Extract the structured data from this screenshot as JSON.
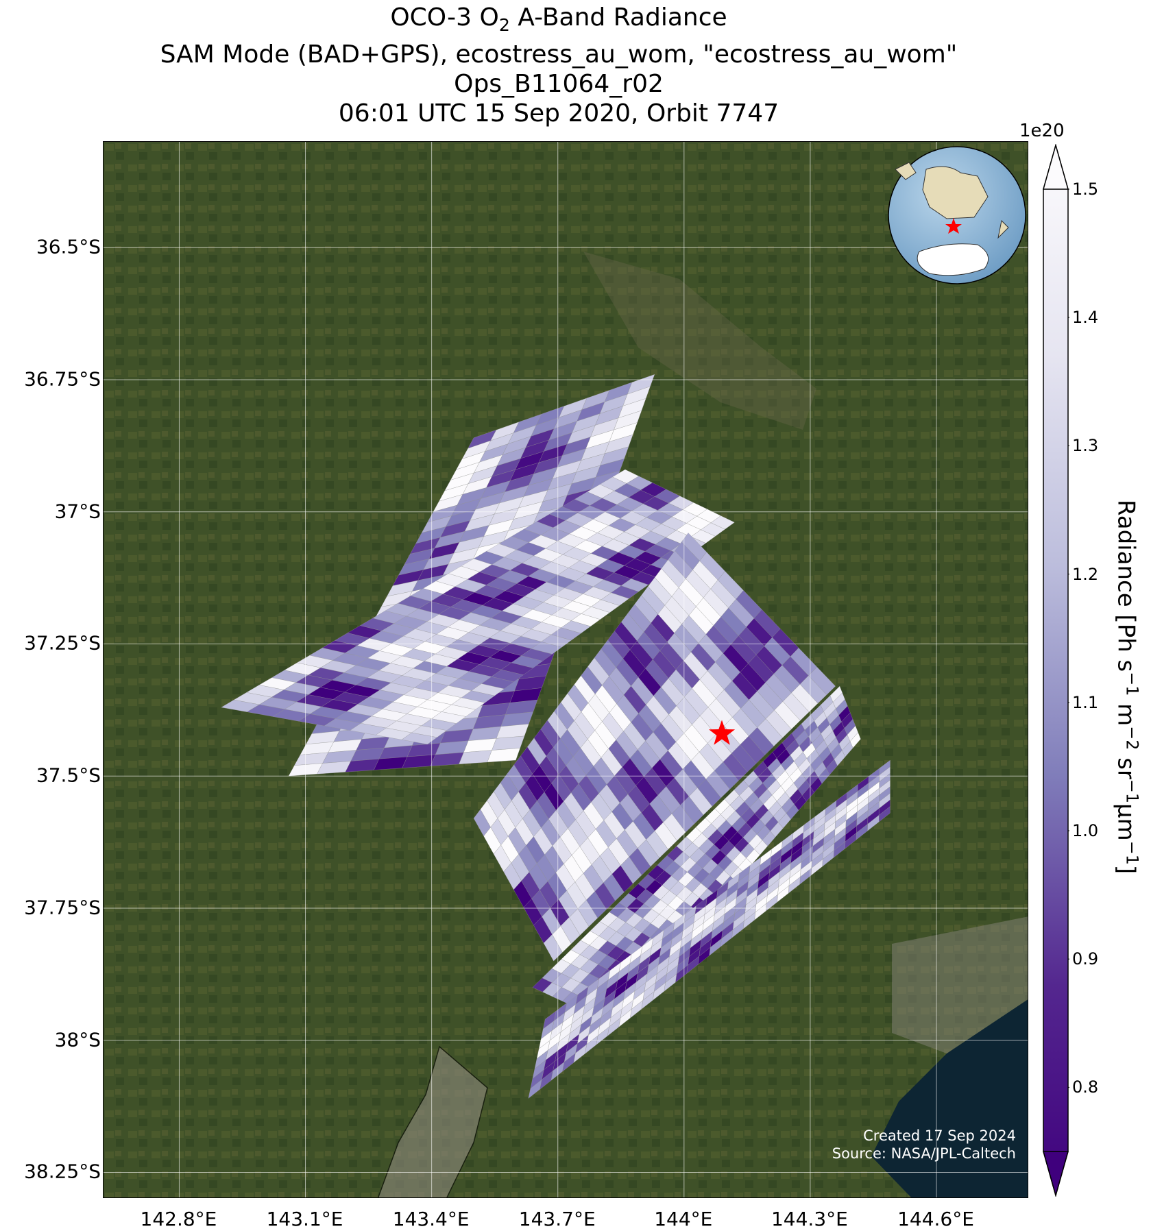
{
  "title": {
    "line1_a": "OCO-3 O",
    "line1_sub": "2",
    "line1_b": " A-Band Radiance",
    "line2": "SAM Mode (BAD+GPS), ecostress_au_wom, \"ecostress_au_wom\"",
    "line3": "Ops_B11064_r02",
    "line4": "06:01 UTC 15 Sep 2020, Orbit 7747"
  },
  "map": {
    "lon_range": [
      142.62,
      144.82
    ],
    "lat_range": [
      -38.3,
      -36.3
    ],
    "lat_ticks": [
      "36.5°S",
      "36.75°S",
      "37°S",
      "37.25°S",
      "37.5°S",
      "37.75°S",
      "38°S",
      "38.25°S"
    ],
    "lon_ticks": [
      "142.8°E",
      "143.1°E",
      "143.4°E",
      "143.7°E",
      "144°E",
      "144.3°E",
      "144.6°E"
    ],
    "target_marker": {
      "lon": 144.09,
      "lat": -37.42,
      "icon": "red-star-icon",
      "color": "#ff0000"
    },
    "globe_inset": {
      "icon": "globe-inset-icon",
      "ocean_color": "#8ab6d6",
      "land_color": "#e6dcb8"
    },
    "background_color": "#3f5128"
  },
  "credit": {
    "line1": "Created 17 Sep 2024",
    "line2": "Source: NASA/JPL-Caltech"
  },
  "colorbar": {
    "exponent": "1e20",
    "ticks": [
      "1.5",
      "1.4",
      "1.3",
      "1.2",
      "1.1",
      "1.0",
      "0.9",
      "0.8"
    ],
    "min": 0.75,
    "max": 1.5,
    "label_main": "Radiance [Ph s",
    "label_sup1": "−1",
    "label_m": " m",
    "label_sup2": "−2",
    "label_sr": " sr",
    "label_sup3": "−1",
    "label_um": "μm",
    "label_sup4": "−1",
    "label_end": "]",
    "colormap": "Purples_r",
    "color_low": "#3f007d",
    "color_high": "#fcfbfd"
  },
  "chart_data": {
    "type": "heatmap",
    "title": "OCO-3 O2 A-Band Radiance",
    "xlabel": "",
    "ylabel": "",
    "value_range": [
      0.75,
      1.5
    ],
    "value_units": "1e20 Ph s-1 m-2 sr-1 μm-1",
    "swaths": [
      {
        "corners_lonlat": [
          [
            143.5,
            -36.86
          ],
          [
            143.93,
            -36.74
          ],
          [
            143.6,
            -37.47
          ],
          [
            143.06,
            -37.5
          ]
        ]
      },
      {
        "corners_lonlat": [
          [
            143.86,
            -36.92
          ],
          [
            144.12,
            -37.02
          ],
          [
            143.39,
            -37.44
          ],
          [
            142.9,
            -37.37
          ]
        ]
      },
      {
        "corners_lonlat": [
          [
            144.01,
            -37.04
          ],
          [
            144.36,
            -37.33
          ],
          [
            143.69,
            -37.85
          ],
          [
            143.5,
            -37.58
          ]
        ]
      },
      {
        "corners_lonlat": [
          [
            144.37,
            -37.33
          ],
          [
            144.42,
            -37.43
          ],
          [
            143.83,
            -37.97
          ],
          [
            143.64,
            -37.9
          ]
        ]
      },
      {
        "corners_lonlat": [
          [
            144.49,
            -37.47
          ],
          [
            144.49,
            -37.57
          ],
          [
            143.63,
            -38.11
          ],
          [
            143.67,
            -37.96
          ]
        ]
      }
    ]
  }
}
